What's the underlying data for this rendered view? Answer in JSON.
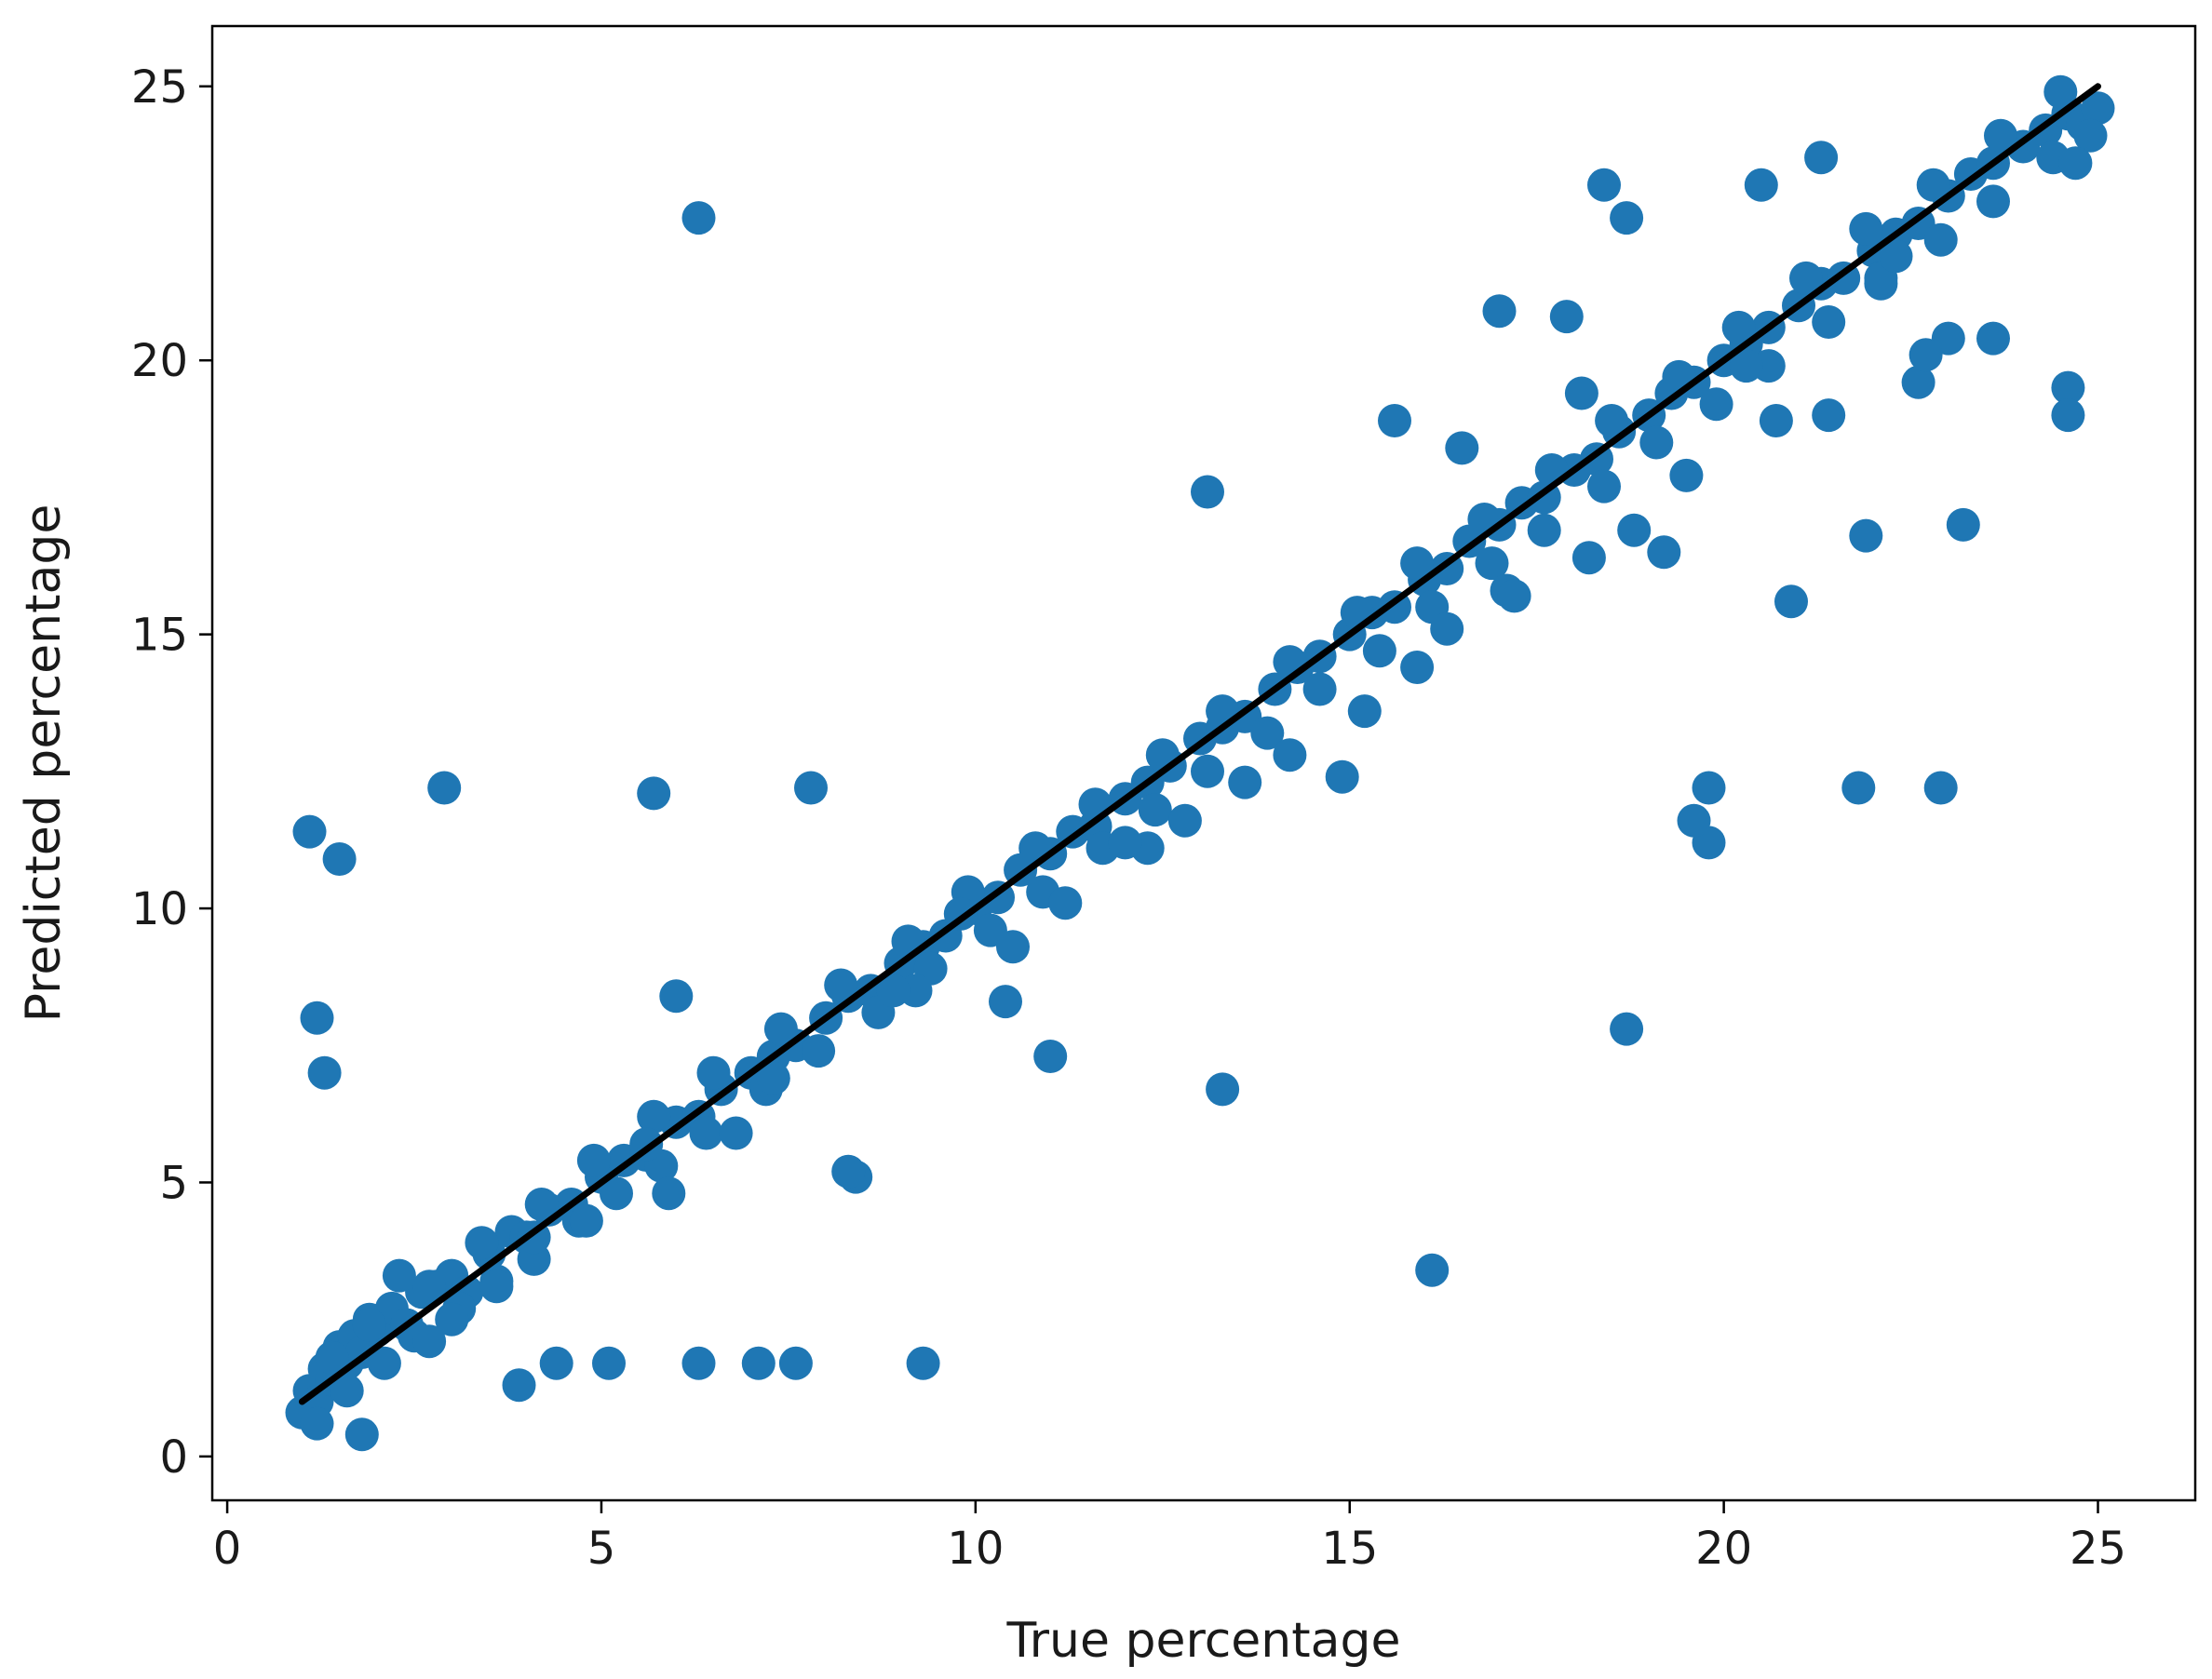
{
  "chart_data": {
    "type": "scatter",
    "title": "",
    "xlabel": "True percentage",
    "ylabel": "Predicted percentage",
    "xlim": [
      -0.2,
      26.3
    ],
    "ylim": [
      -0.8,
      26.1
    ],
    "xticks": [
      0,
      5,
      10,
      15,
      20,
      25
    ],
    "yticks": [
      0,
      5,
      10,
      15,
      20,
      25
    ],
    "grid": false,
    "legend": "none",
    "colors": {
      "points": "#1f77b4",
      "reference_line": "#000000",
      "axes": "#000000"
    },
    "reference_line": {
      "x": [
        1,
        25
      ],
      "y": [
        1,
        25
      ]
    },
    "series": [
      {
        "values_description": "",
        "x": [
          1.0,
          1.1,
          1.2,
          1.3,
          1.4,
          1.5,
          1.6,
          1.7,
          1.8,
          1.9,
          2.0,
          2.2,
          2.4,
          2.6,
          2.8,
          3.0,
          3.2,
          3.5,
          3.8,
          4.0,
          4.3,
          4.6,
          5.0,
          5.3,
          5.6,
          6.0,
          6.3,
          6.6,
          7.0,
          7.3,
          7.6,
          8.0,
          8.3,
          8.6,
          9.0,
          9.3,
          9.6,
          10.0,
          10.3,
          10.6,
          11.0,
          11.3,
          11.6,
          12.0,
          12.3,
          12.6,
          13.0,
          13.3,
          13.6,
          14.0,
          14.3,
          14.6,
          15.0,
          15.3,
          15.6,
          16.0,
          16.3,
          16.6,
          17.0,
          17.3,
          17.6,
          18.0,
          18.3,
          18.6,
          19.0,
          19.3,
          19.6,
          20.0,
          20.3,
          20.6,
          21.0,
          21.3,
          21.6,
          22.0,
          22.3,
          22.6,
          23.0,
          23.3,
          23.6,
          24.0,
          24.3,
          24.6,
          24.8,
          25.0,
          1.2,
          1.6,
          2.1,
          2.5,
          3.1,
          3.6,
          4.1,
          4.7,
          5.2,
          5.8,
          6.4,
          7.2,
          7.9,
          8.7,
          9.4,
          10.2,
          10.9,
          11.7,
          12.4,
          13.1,
          13.9,
          14.6,
          15.4,
          16.1,
          16.9,
          17.6,
          18.4,
          19.1,
          19.9,
          20.6,
          21.4,
          22.1,
          22.9,
          23.6,
          24.4,
          24.9,
          1.4,
          1.9,
          2.7,
          3.4,
          4.2,
          4.9,
          5.7,
          6.5,
          7.4,
          8.2,
          9.1,
          9.9,
          10.8,
          11.6,
          12.5,
          13.3,
          14.2,
          15.1,
          15.9,
          16.8,
          17.7,
          18.5,
          19.4,
          20.2,
          21.1,
          21.9,
          22.8,
          23.7,
          24.5,
          24.7,
          1.1,
          1.5,
          1.2,
          1.3,
          2.9,
          5.7,
          7.8,
          6.3,
          6.0,
          13.1,
          18.4,
          18.7,
          19.8,
          19.8,
          19.6,
          21.8,
          22.9,
          20.9,
          16.1,
          9.3,
          7.6,
          7.1,
          6.3,
          5.1,
          4.4,
          3.9,
          18.7,
          13.3,
          11.0,
          10.4,
          12.3,
          8.4,
          8.3,
          14.9,
          15.6,
          17.0,
          16.5,
          17.9,
          19.2,
          20.3,
          21.3,
          22.6,
          23.2,
          24.6,
          24.6,
          23.0,
          22.1,
          22.7,
          21.9,
          20.5,
          21.4,
          22.3,
          23.6,
          2.3,
          1.8,
          3.6,
          4.1,
          5.9,
          6.8,
          9.2,
          10.5,
          12.0,
          14.2,
          15.9,
          17.1,
          18.2,
          19.5,
          20.7,
          16.3,
          17.2,
          18.8,
          18.1,
          15.2,
          13.6,
          12.8,
          11.2,
          9.8,
          8.9,
          7.3,
          4.8,
          5.6,
          3.0,
          2.7
        ],
        "y": [
          0.8,
          1.2,
          1.0,
          1.6,
          1.4,
          2.0,
          1.7,
          2.2,
          1.9,
          2.5,
          2.3,
          2.7,
          2.4,
          3.0,
          3.1,
          3.3,
          3.0,
          3.7,
          4.1,
          4.0,
          4.5,
          4.6,
          5.1,
          5.4,
          5.5,
          6.1,
          6.2,
          6.7,
          7.0,
          7.3,
          7.5,
          8.0,
          8.4,
          8.5,
          9.0,
          9.3,
          9.5,
          10.0,
          10.2,
          10.7,
          11.0,
          11.4,
          11.5,
          12.0,
          12.3,
          12.6,
          13.1,
          13.3,
          13.5,
          14.0,
          14.4,
          14.6,
          15.0,
          15.4,
          15.5,
          16.0,
          16.2,
          16.7,
          17.0,
          17.4,
          17.5,
          18.0,
          18.2,
          18.7,
          19.0,
          19.4,
          19.6,
          20.0,
          20.3,
          20.6,
          21.0,
          21.4,
          21.5,
          22.0,
          22.3,
          22.5,
          23.0,
          23.4,
          23.6,
          23.9,
          24.2,
          24.5,
          24.3,
          24.6,
          0.6,
          1.2,
          1.7,
          2.2,
          2.7,
          3.2,
          3.6,
          4.3,
          4.8,
          5.3,
          5.9,
          6.7,
          7.4,
          8.1,
          8.9,
          9.6,
          10.3,
          11.1,
          11.8,
          12.5,
          13.2,
          14.0,
          14.7,
          15.5,
          16.3,
          16.9,
          17.7,
          18.5,
          19.2,
          19.9,
          20.7,
          21.4,
          22.2,
          22.9,
          23.7,
          24.1,
          1.8,
          2.4,
          3.1,
          3.9,
          4.6,
          5.4,
          6.2,
          7.0,
          7.8,
          8.6,
          9.4,
          10.3,
          11.1,
          11.9,
          12.8,
          13.6,
          14.5,
          15.4,
          16.3,
          17.1,
          18.0,
          18.9,
          19.7,
          20.6,
          21.5,
          22.4,
          23.2,
          24.1,
          24.9,
          23.6,
          11.4,
          10.9,
          8.0,
          7.0,
          12.2,
          12.1,
          12.2,
          22.6,
          8.4,
          17.6,
          23.2,
          22.6,
          12.2,
          11.2,
          11.6,
          12.2,
          12.2,
          15.6,
          3.4,
          1.7,
          1.7,
          1.7,
          1.7,
          1.7,
          1.7,
          1.3,
          7.8,
          6.7,
          7.3,
          8.3,
          11.1,
          5.1,
          5.2,
          12.4,
          18.9,
          20.9,
          18.4,
          20.8,
          16.5,
          19.9,
          23.7,
          19.6,
          17.0,
          19.5,
          19.0,
          20.4,
          21.5,
          20.1,
          16.8,
          23.2,
          19.0,
          21.9,
          20.4,
          3.3,
          0.4,
          3.1,
          4.0,
          4.8,
          5.9,
          8.5,
          9.3,
          11.2,
          12.8,
          14.4,
          15.8,
          16.4,
          17.9,
          18.9,
          15.1,
          15.7,
          16.9,
          19.4,
          13.6,
          12.3,
          11.6,
          10.1,
          9.9,
          8.5,
          6.9,
          4.3,
          5.7,
          2.5,
          2.1
        ]
      }
    ]
  }
}
